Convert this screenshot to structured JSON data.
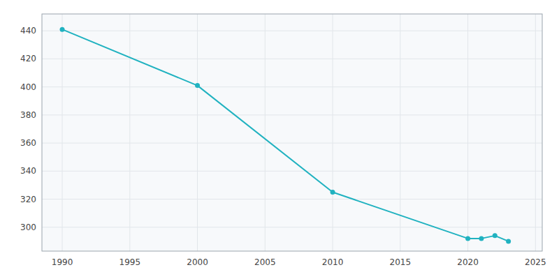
{
  "chart_data": {
    "type": "line",
    "x": [
      1990,
      2000,
      2010,
      2020,
      2021,
      2022,
      2023
    ],
    "values": [
      441,
      401,
      325,
      292,
      292,
      294,
      290
    ],
    "color": "#20b2c0",
    "marker": "circle",
    "xlim": [
      1988.5,
      2025.5
    ],
    "ylim": [
      283,
      452
    ],
    "xticks": [
      1990,
      1995,
      2000,
      2005,
      2010,
      2015,
      2020,
      2025
    ],
    "yticks": [
      300,
      320,
      340,
      360,
      380,
      400,
      420,
      440
    ],
    "grid": true
  }
}
